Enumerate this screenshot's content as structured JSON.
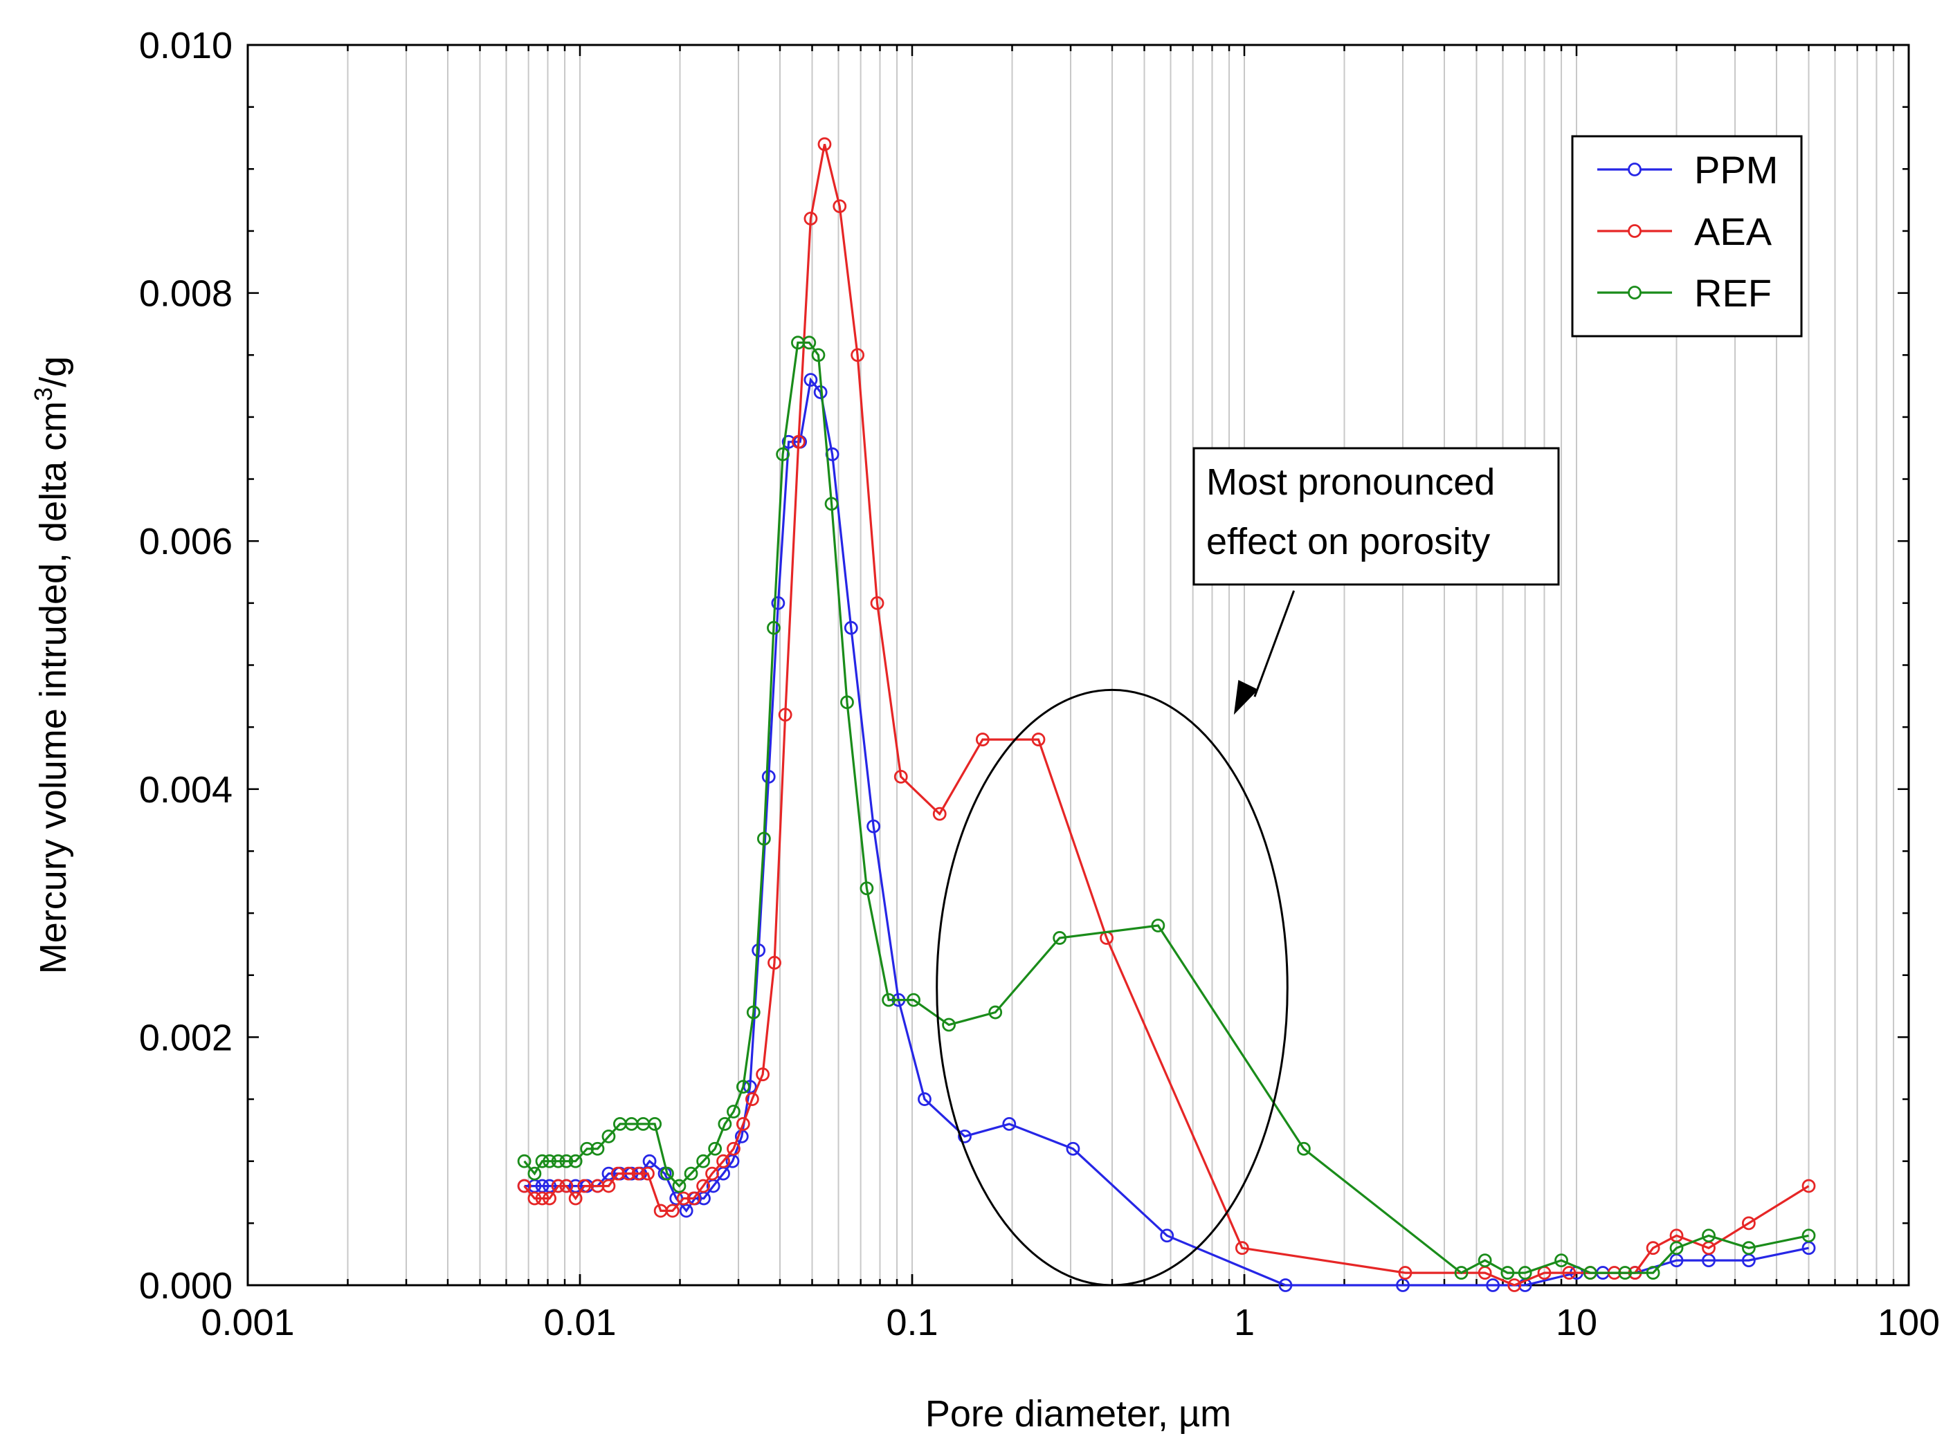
{
  "chart_data": {
    "type": "line",
    "title": "",
    "xlabel": "Pore diameter, µm",
    "ylabel_main": "Mercury volume intruded, delta cm",
    "ylabel_sup": "3",
    "ylabel_tail": "/g",
    "xscale": "log",
    "xlim": [
      0.001,
      100
    ],
    "ylim": [
      0,
      0.01
    ],
    "xticks": [
      0.001,
      0.01,
      0.1,
      1,
      10,
      100
    ],
    "xtick_labels": [
      "0.001",
      "0.01",
      "0.1",
      "1",
      "10",
      "100"
    ],
    "yticks": [
      0,
      0.002,
      0.004,
      0.006,
      0.008,
      0.01
    ],
    "ytick_labels": [
      "0.000",
      "0.002",
      "0.004",
      "0.006",
      "0.008",
      "0.010"
    ],
    "grid": "vertical log minor lines",
    "legend_position": "top-right",
    "series": [
      {
        "name": "PPM",
        "color": "#2626e6",
        "x": [
          0.0068,
          0.0073,
          0.0077,
          0.0081,
          0.0086,
          0.0091,
          0.0097,
          0.0105,
          0.0113,
          0.0122,
          0.0132,
          0.0143,
          0.0152,
          0.0162,
          0.018,
          0.0195,
          0.0209,
          0.0222,
          0.0236,
          0.0252,
          0.027,
          0.0288,
          0.0307,
          0.0325,
          0.0345,
          0.037,
          0.0395,
          0.0425,
          0.046,
          0.0495,
          0.053,
          0.0575,
          0.0655,
          0.0765,
          0.091,
          0.109,
          0.144,
          0.196,
          0.305,
          0.585,
          1.33,
          3.0,
          5.6,
          7.0,
          10.0,
          12.0,
          15.0,
          20.0,
          25.0,
          33.0,
          50.0
        ],
        "y": [
          0.0008,
          0.0008,
          0.0008,
          0.0008,
          0.0008,
          0.0008,
          0.0008,
          0.0008,
          0.0008,
          0.0009,
          0.0009,
          0.0009,
          0.0009,
          0.001,
          0.0009,
          0.0007,
          0.0006,
          0.0007,
          0.0007,
          0.0008,
          0.0009,
          0.001,
          0.0012,
          0.0016,
          0.0027,
          0.0041,
          0.0055,
          0.0068,
          0.0068,
          0.0073,
          0.0072,
          0.0067,
          0.0053,
          0.0037,
          0.0023,
          0.0015,
          0.0012,
          0.0013,
          0.0011,
          0.0004,
          0.0,
          0.0,
          0.0,
          0.0,
          0.0001,
          0.0001,
          0.0001,
          0.0002,
          0.0002,
          0.0002,
          0.0003
        ]
      },
      {
        "name": "AEA",
        "color": "#e62626",
        "x": [
          0.0068,
          0.0073,
          0.0077,
          0.0081,
          0.0086,
          0.0091,
          0.0097,
          0.0103,
          0.0113,
          0.0122,
          0.013,
          0.014,
          0.015,
          0.016,
          0.0175,
          0.019,
          0.0205,
          0.022,
          0.0235,
          0.025,
          0.027,
          0.029,
          0.031,
          0.033,
          0.0355,
          0.0385,
          0.0415,
          0.0455,
          0.0495,
          0.0545,
          0.0605,
          0.0685,
          0.0785,
          0.0925,
          0.121,
          0.163,
          0.24,
          0.385,
          0.985,
          3.05,
          5.3,
          6.5,
          8.0,
          9.5,
          11.0,
          13.0,
          15.0,
          17.0,
          20.0,
          25.0,
          33.0,
          50.0
        ],
        "y": [
          0.0008,
          0.0007,
          0.0007,
          0.0007,
          0.0008,
          0.0008,
          0.0007,
          0.0008,
          0.0008,
          0.0008,
          0.0009,
          0.0009,
          0.0009,
          0.0009,
          0.0006,
          0.0006,
          0.0007,
          0.0007,
          0.0008,
          0.0009,
          0.001,
          0.0011,
          0.0013,
          0.0015,
          0.0017,
          0.0026,
          0.0046,
          0.0068,
          0.0086,
          0.0092,
          0.0087,
          0.0075,
          0.0055,
          0.0041,
          0.0038,
          0.0044,
          0.0044,
          0.0028,
          0.0003,
          0.0001,
          0.0001,
          0.0,
          0.0001,
          0.0001,
          0.0001,
          0.0001,
          0.0001,
          0.0003,
          0.0004,
          0.0003,
          0.0005,
          0.0008
        ]
      },
      {
        "name": "REF",
        "color": "#1a8c1a",
        "x": [
          0.0068,
          0.0073,
          0.0077,
          0.0081,
          0.0086,
          0.0091,
          0.0097,
          0.0105,
          0.0113,
          0.0122,
          0.0132,
          0.0143,
          0.0155,
          0.0168,
          0.0183,
          0.0199,
          0.0216,
          0.0235,
          0.0255,
          0.0273,
          0.029,
          0.031,
          0.0333,
          0.0358,
          0.0383,
          0.0408,
          0.0453,
          0.049,
          0.0522,
          0.0572,
          0.0637,
          0.073,
          0.085,
          0.101,
          0.129,
          0.178,
          0.278,
          0.55,
          1.51,
          4.5,
          5.3,
          6.2,
          7.0,
          9.0,
          11.0,
          14.0,
          17.0,
          20.0,
          25.0,
          33.0,
          50.0
        ],
        "y": [
          0.001,
          0.0009,
          0.001,
          0.001,
          0.001,
          0.001,
          0.001,
          0.0011,
          0.0011,
          0.0012,
          0.0013,
          0.0013,
          0.0013,
          0.0013,
          0.0009,
          0.0008,
          0.0009,
          0.001,
          0.0011,
          0.0013,
          0.0014,
          0.0016,
          0.0022,
          0.0036,
          0.0053,
          0.0067,
          0.0076,
          0.0076,
          0.0075,
          0.0063,
          0.0047,
          0.0032,
          0.0023,
          0.0023,
          0.0021,
          0.0022,
          0.0028,
          0.0029,
          0.0011,
          0.0001,
          0.0002,
          0.0001,
          0.0001,
          0.0002,
          0.0001,
          0.0001,
          0.0001,
          0.0003,
          0.0004,
          0.0003,
          0.0004
        ]
      }
    ],
    "annotation": {
      "lines": [
        "Most pronounced",
        "effect on porosity"
      ],
      "ellipse_center": [
        0.4,
        0.0024
      ],
      "ellipse_x_range": [
        0.125,
        1.42
      ],
      "ellipse_y_range": [
        0.0003,
        0.0051
      ],
      "arrow_from": [
        1.41,
        0.0056
      ],
      "arrow_to": [
        0.93,
        0.0046
      ]
    }
  }
}
